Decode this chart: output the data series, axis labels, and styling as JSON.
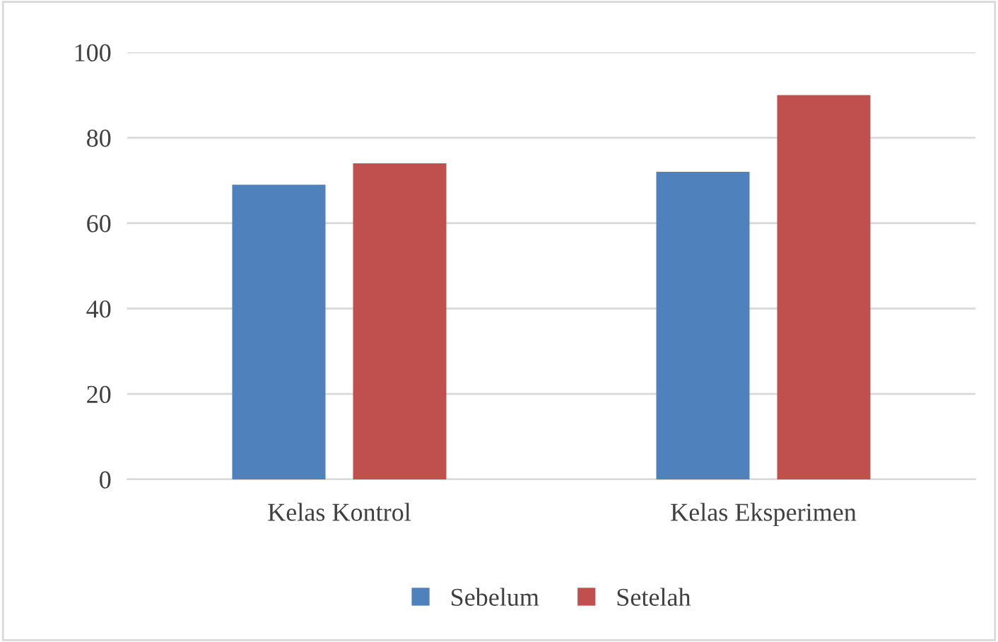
{
  "chart_data": {
    "type": "bar",
    "categories": [
      "Kelas Kontrol",
      "Kelas Eksperimen"
    ],
    "series": [
      {
        "name": "Sebelum",
        "color": "#4f81bd",
        "values": [
          69,
          72
        ]
      },
      {
        "name": "Setelah",
        "color": "#c0504d",
        "values": [
          74,
          90
        ]
      }
    ],
    "ylim": [
      0,
      100
    ],
    "yticks": [
      0,
      20,
      40,
      60,
      80,
      100
    ],
    "grid": "y",
    "legend": "bottom"
  }
}
